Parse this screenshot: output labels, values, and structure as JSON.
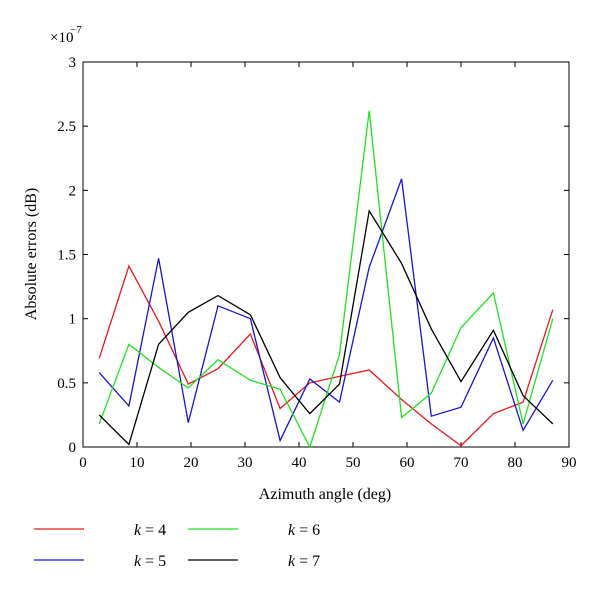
{
  "chart_data": {
    "type": "line",
    "title": "",
    "xlabel": "Azimuth angle (deg)",
    "ylabel": "Absolute errors (dB)",
    "y_multiplier_label": "×10",
    "y_multiplier_exponent": "−7",
    "xlim": [
      0,
      90
    ],
    "ylim": [
      0,
      3
    ],
    "xticks": [
      0,
      10,
      20,
      30,
      40,
      50,
      60,
      70,
      80,
      90
    ],
    "yticks": [
      0,
      0.5,
      1,
      1.5,
      2,
      2.5,
      3
    ],
    "ytick_labels": [
      "0",
      "0.5",
      "1",
      "1.5",
      "2",
      "2.5",
      "3"
    ],
    "grid": false,
    "legend_placement": "bottom-left-below",
    "x": [
      3,
      8.5,
      14,
      19.5,
      25,
      31,
      36.5,
      42,
      47.5,
      53,
      59,
      64.5,
      70,
      76,
      81.5,
      87
    ],
    "series": [
      {
        "name": "k = 4",
        "color": "#e41a1c",
        "values": [
          0.69,
          1.41,
          0.98,
          0.49,
          0.61,
          0.88,
          0.3,
          0.5,
          0.55,
          0.6,
          0.37,
          0.18,
          0.01,
          0.26,
          0.35,
          1.07
        ]
      },
      {
        "name": "k = 5",
        "color": "#1515d6",
        "values": [
          0.58,
          0.32,
          1.47,
          0.19,
          1.1,
          1.0,
          0.05,
          0.53,
          0.35,
          1.4,
          2.09,
          0.24,
          0.31,
          0.85,
          0.13,
          0.52
        ]
      },
      {
        "name": "k = 6",
        "color": "#22e022",
        "values": [
          0.18,
          0.8,
          0.62,
          0.46,
          0.68,
          0.52,
          0.45,
          0.0,
          0.72,
          2.62,
          0.23,
          0.42,
          0.93,
          1.2,
          0.18,
          1.0
        ]
      },
      {
        "name": "k = 7",
        "color": "#000000",
        "values": [
          0.25,
          0.02,
          0.8,
          1.05,
          1.18,
          1.03,
          0.54,
          0.26,
          0.49,
          1.84,
          1.43,
          0.92,
          0.51,
          0.91,
          0.4,
          0.18
        ]
      }
    ],
    "legend_name_prefix": "k",
    "legend_name_suffix": " = "
  }
}
